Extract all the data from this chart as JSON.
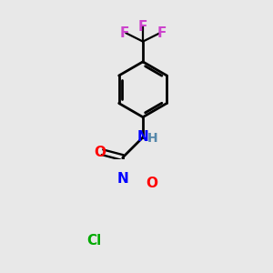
{
  "background_color": "#e8e8e8",
  "bond_color": "#000000",
  "atom_colors": {
    "F": "#cc44cc",
    "N": "#0000ff",
    "O": "#ff0000",
    "Cl": "#00aa00",
    "H": "#5588aa",
    "C": "#000000"
  },
  "figsize": [
    3.0,
    3.0
  ],
  "dpi": 100
}
